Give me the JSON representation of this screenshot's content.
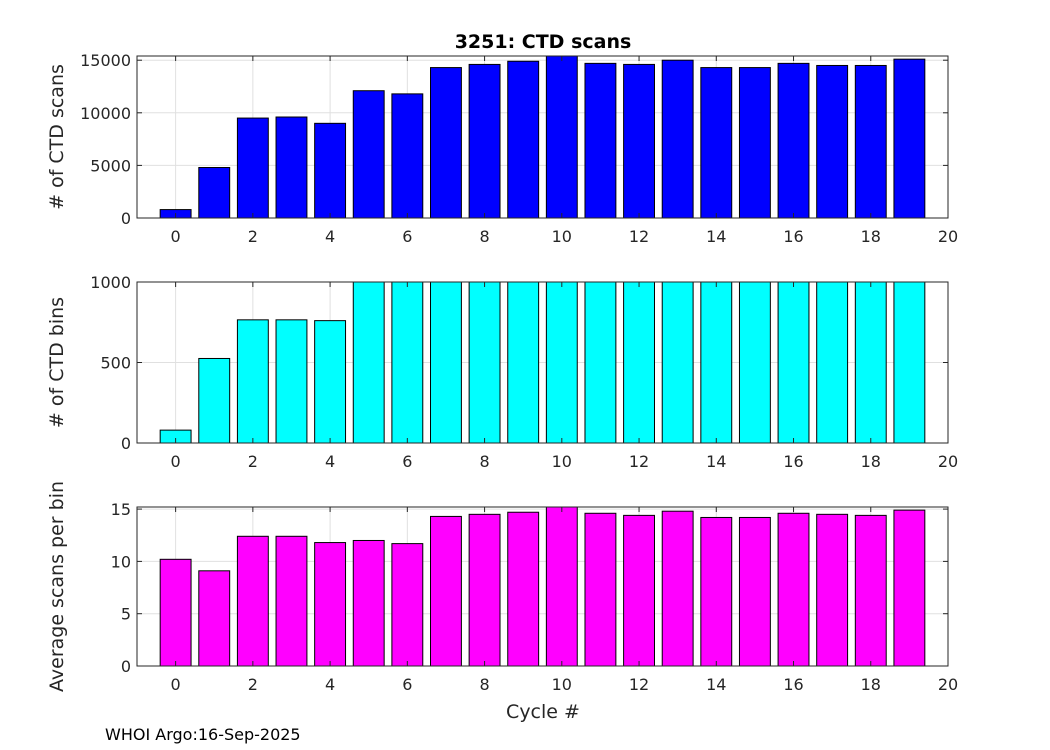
{
  "title": "3251: CTD scans",
  "xlabel": "Cycle #",
  "footer": "WHOI Argo:16-Sep-2025",
  "chart_data": [
    {
      "type": "bar",
      "title": "3251: CTD scans",
      "ylabel": "# of CTD scans",
      "xlabel": "",
      "color": "#0000ff",
      "x": [
        0,
        1,
        2,
        3,
        4,
        5,
        6,
        7,
        8,
        9,
        10,
        11,
        12,
        13,
        14,
        15,
        16,
        17,
        18,
        19
      ],
      "values": [
        800,
        4800,
        9500,
        9600,
        9000,
        12100,
        11800,
        14300,
        14600,
        14900,
        15400,
        14700,
        14600,
        15000,
        14300,
        14300,
        14700,
        14500,
        14500,
        15100
      ],
      "xlim": [
        -1,
        20
      ],
      "ylim": [
        0,
        15400
      ],
      "xticks": [
        0,
        2,
        4,
        6,
        8,
        10,
        12,
        14,
        16,
        18,
        20
      ],
      "yticks": [
        0,
        5000,
        10000,
        15000
      ],
      "grid": true
    },
    {
      "type": "bar",
      "title": "",
      "ylabel": "# of CTD bins",
      "xlabel": "",
      "color": "#00ffff",
      "x": [
        0,
        1,
        2,
        3,
        4,
        5,
        6,
        7,
        8,
        9,
        10,
        11,
        12,
        13,
        14,
        15,
        16,
        17,
        18,
        19
      ],
      "values": [
        80,
        525,
        765,
        765,
        760,
        1000,
        1000,
        1000,
        1000,
        1000,
        1000,
        1000,
        1000,
        1000,
        1000,
        1000,
        1000,
        1000,
        1000,
        1000
      ],
      "xlim": [
        -1,
        20
      ],
      "ylim": [
        0,
        1000
      ],
      "xticks": [
        0,
        2,
        4,
        6,
        8,
        10,
        12,
        14,
        16,
        18,
        20
      ],
      "yticks": [
        0,
        500,
        1000
      ],
      "grid": true
    },
    {
      "type": "bar",
      "title": "",
      "ylabel": "Average scans per bin",
      "xlabel": "Cycle #",
      "color": "#ff00ff",
      "x": [
        0,
        1,
        2,
        3,
        4,
        5,
        6,
        7,
        8,
        9,
        10,
        11,
        12,
        13,
        14,
        15,
        16,
        17,
        18,
        19
      ],
      "values": [
        10.2,
        9.1,
        12.4,
        12.4,
        11.8,
        12.0,
        11.7,
        14.3,
        14.5,
        14.7,
        15.2,
        14.6,
        14.4,
        14.8,
        14.2,
        14.2,
        14.6,
        14.5,
        14.4,
        14.9
      ],
      "xlim": [
        -1,
        20
      ],
      "ylim": [
        0,
        15.2
      ],
      "xticks": [
        0,
        2,
        4,
        6,
        8,
        10,
        12,
        14,
        16,
        18,
        20
      ],
      "yticks": [
        0,
        5,
        10,
        15
      ],
      "grid": true
    }
  ]
}
